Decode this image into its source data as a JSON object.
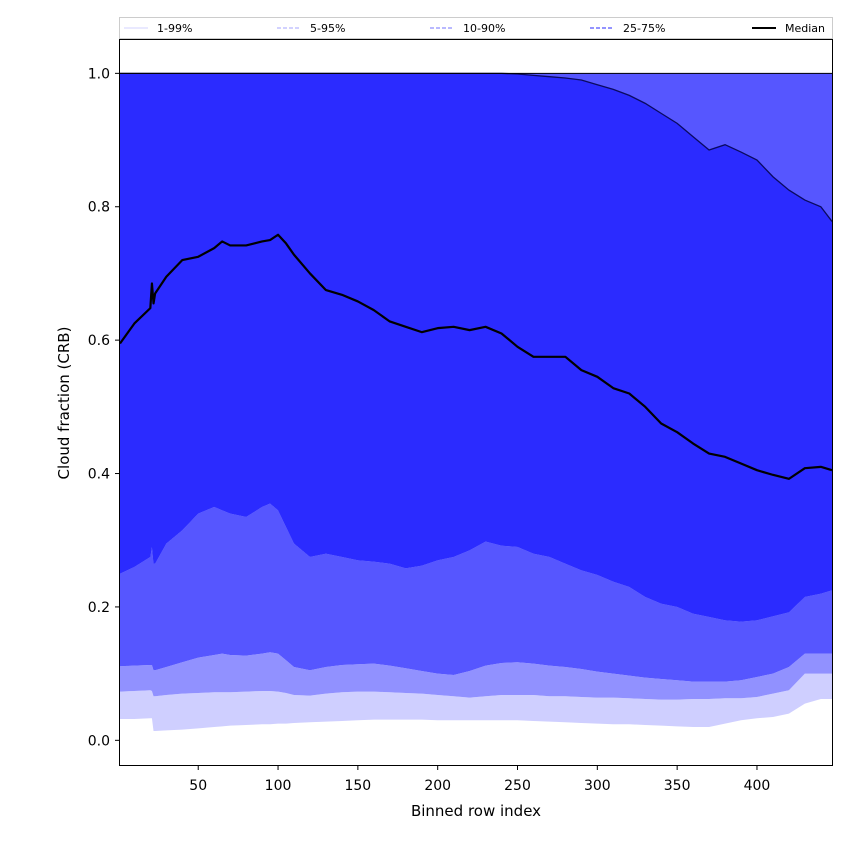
{
  "chart_data": {
    "type": "area",
    "title": "",
    "xlabel": "Binned row index",
    "ylabel": "Cloud fraction (CRB)",
    "xlim": [
      1,
      447
    ],
    "ylim": [
      -0.037,
      1.05
    ],
    "xticks": [
      50,
      100,
      150,
      200,
      250,
      300,
      350,
      400
    ],
    "yticks": [
      0.0,
      0.2,
      0.4,
      0.6,
      0.8,
      1.0
    ],
    "ytick_labels": [
      "0.0",
      "0.2",
      "0.4",
      "0.6",
      "0.8",
      "1.0"
    ],
    "grid": false,
    "legend_position": "top",
    "legend": [
      {
        "label": "1-99%",
        "style": "solid",
        "color": "#dcdcff"
      },
      {
        "label": "5-95%",
        "style": "dashed",
        "color": "#b8b8ff"
      },
      {
        "label": "10-90%",
        "style": "dashed",
        "color": "#8f8fff"
      },
      {
        "label": "25-75%",
        "style": "dashed",
        "color": "#5555ff"
      },
      {
        "label": "Median",
        "style": "solid",
        "color": "#000000"
      }
    ],
    "band_colors": {
      "p1_p5": "#cfcfff",
      "p5_p10": "#9191ff",
      "p10_p25": "#5656ff",
      "p25_p75": "#2b2bff",
      "p75_p90": "#5656ff",
      "upper_edge": "#0a0a60"
    },
    "x": [
      1,
      10,
      20,
      21,
      22,
      23,
      30,
      40,
      50,
      60,
      65,
      70,
      80,
      90,
      95,
      100,
      105,
      110,
      120,
      130,
      140,
      150,
      160,
      170,
      180,
      190,
      200,
      210,
      220,
      230,
      240,
      250,
      260,
      270,
      280,
      290,
      300,
      310,
      320,
      330,
      340,
      350,
      360,
      370,
      380,
      390,
      400,
      410,
      420,
      430,
      440,
      447
    ],
    "series": [
      {
        "name": "1-99%",
        "lower": [
          0.032,
          0.032,
          0.033,
          0.033,
          0.014,
          0.014,
          0.015,
          0.016,
          0.018,
          0.02,
          0.021,
          0.022,
          0.023,
          0.024,
          0.024,
          0.025,
          0.025,
          0.026,
          0.027,
          0.028,
          0.029,
          0.03,
          0.031,
          0.031,
          0.031,
          0.031,
          0.03,
          0.03,
          0.03,
          0.03,
          0.03,
          0.03,
          0.029,
          0.028,
          0.027,
          0.026,
          0.025,
          0.024,
          0.024,
          0.023,
          0.022,
          0.021,
          0.02,
          0.02,
          0.025,
          0.03,
          0.033,
          0.035,
          0.04,
          0.055,
          0.062,
          0.062
        ]
      },
      {
        "name": "5-95%",
        "lower": [
          0.073,
          0.074,
          0.075,
          0.074,
          0.066,
          0.066,
          0.068,
          0.07,
          0.071,
          0.072,
          0.072,
          0.072,
          0.073,
          0.074,
          0.074,
          0.073,
          0.071,
          0.068,
          0.067,
          0.07,
          0.072,
          0.073,
          0.073,
          0.072,
          0.071,
          0.07,
          0.068,
          0.066,
          0.064,
          0.066,
          0.068,
          0.068,
          0.068,
          0.066,
          0.066,
          0.065,
          0.064,
          0.064,
          0.063,
          0.062,
          0.061,
          0.061,
          0.062,
          0.062,
          0.063,
          0.063,
          0.065,
          0.07,
          0.075,
          0.1,
          0.1,
          0.1
        ]
      },
      {
        "name": "10-90%",
        "lower": [
          0.111,
          0.112,
          0.113,
          0.113,
          0.105,
          0.105,
          0.11,
          0.117,
          0.124,
          0.128,
          0.13,
          0.128,
          0.127,
          0.13,
          0.132,
          0.13,
          0.12,
          0.11,
          0.105,
          0.11,
          0.113,
          0.114,
          0.115,
          0.112,
          0.108,
          0.104,
          0.1,
          0.098,
          0.104,
          0.112,
          0.116,
          0.117,
          0.115,
          0.112,
          0.11,
          0.107,
          0.103,
          0.1,
          0.097,
          0.094,
          0.092,
          0.09,
          0.088,
          0.088,
          0.088,
          0.09,
          0.095,
          0.1,
          0.11,
          0.13,
          0.13,
          0.13
        ]
      },
      {
        "name": "25-75%",
        "lower": [
          0.25,
          0.26,
          0.275,
          0.29,
          0.265,
          0.265,
          0.295,
          0.315,
          0.34,
          0.35,
          0.345,
          0.34,
          0.335,
          0.35,
          0.355,
          0.345,
          0.32,
          0.295,
          0.275,
          0.28,
          0.275,
          0.27,
          0.268,
          0.265,
          0.258,
          0.262,
          0.27,
          0.275,
          0.285,
          0.298,
          0.292,
          0.29,
          0.28,
          0.275,
          0.265,
          0.255,
          0.248,
          0.238,
          0.23,
          0.215,
          0.205,
          0.2,
          0.19,
          0.185,
          0.18,
          0.178,
          0.18,
          0.186,
          0.192,
          0.215,
          0.22,
          0.225
        ],
        "upper": [
          1.0,
          1.0,
          1.0,
          1.0,
          1.0,
          1.0,
          1.0,
          1.0,
          1.0,
          1.0,
          1.0,
          1.0,
          1.0,
          1.0,
          1.0,
          1.0,
          1.0,
          1.0,
          1.0,
          1.0,
          1.0,
          1.0,
          1.0,
          1.0,
          1.0,
          1.0,
          1.0,
          1.0,
          1.0,
          1.0,
          1.0,
          0.999,
          0.997,
          0.995,
          0.993,
          0.99,
          0.983,
          0.976,
          0.967,
          0.955,
          0.94,
          0.925,
          0.905,
          0.885,
          0.893,
          0.882,
          0.87,
          0.845,
          0.825,
          0.81,
          0.8,
          0.778
        ]
      },
      {
        "name": "Median",
        "values": [
          0.595,
          0.625,
          0.648,
          0.685,
          0.655,
          0.67,
          0.695,
          0.72,
          0.725,
          0.738,
          0.748,
          0.742,
          0.742,
          0.748,
          0.75,
          0.758,
          0.745,
          0.728,
          0.7,
          0.675,
          0.668,
          0.658,
          0.645,
          0.628,
          0.62,
          0.612,
          0.618,
          0.62,
          0.615,
          0.62,
          0.61,
          0.59,
          0.575,
          0.575,
          0.575,
          0.555,
          0.545,
          0.528,
          0.52,
          0.5,
          0.475,
          0.462,
          0.445,
          0.43,
          0.425,
          0.415,
          0.405,
          0.398,
          0.392,
          0.408,
          0.41,
          0.405
        ]
      }
    ]
  }
}
